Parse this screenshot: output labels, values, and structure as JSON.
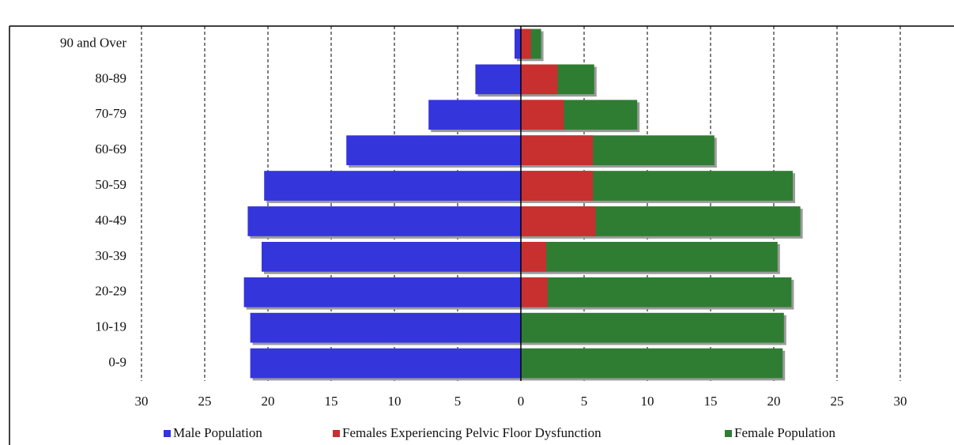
{
  "chart_data": {
    "type": "pyramid",
    "categories": [
      "0-9",
      "10-19",
      "20-29",
      "30-39",
      "40-49",
      "50-59",
      "60-69",
      "70-79",
      "80-89",
      "90 and Over"
    ],
    "series": [
      {
        "name": "Male Population",
        "color": "#3535dc",
        "values": [
          -21.4,
          -21.4,
          -21.9,
          -20.5,
          -21.6,
          -20.3,
          -13.8,
          -7.3,
          -3.6,
          -0.5
        ]
      },
      {
        "name": "Females Experiencing Pelvic Floor Dysfunction",
        "color": "#c8302f",
        "values": [
          0,
          0,
          2.1,
          2.0,
          5.9,
          5.7,
          5.7,
          3.4,
          2.9,
          0.8
        ]
      },
      {
        "name": "Female Population",
        "color": "#2f7d33",
        "values": [
          20.7,
          20.8,
          21.4,
          20.3,
          22.1,
          21.5,
          15.3,
          9.2,
          5.8,
          1.6
        ]
      }
    ],
    "xlim": [
      -30,
      30
    ],
    "xticks": [
      {
        "value": -30,
        "label": "30"
      },
      {
        "value": -25,
        "label": "25"
      },
      {
        "value": -20,
        "label": "20"
      },
      {
        "value": -15,
        "label": "15"
      },
      {
        "value": -10,
        "label": "10"
      },
      {
        "value": -5,
        "label": "5"
      },
      0,
      5,
      10,
      15,
      20,
      25,
      30
    ],
    "grid": true,
    "legend": "bottom"
  }
}
